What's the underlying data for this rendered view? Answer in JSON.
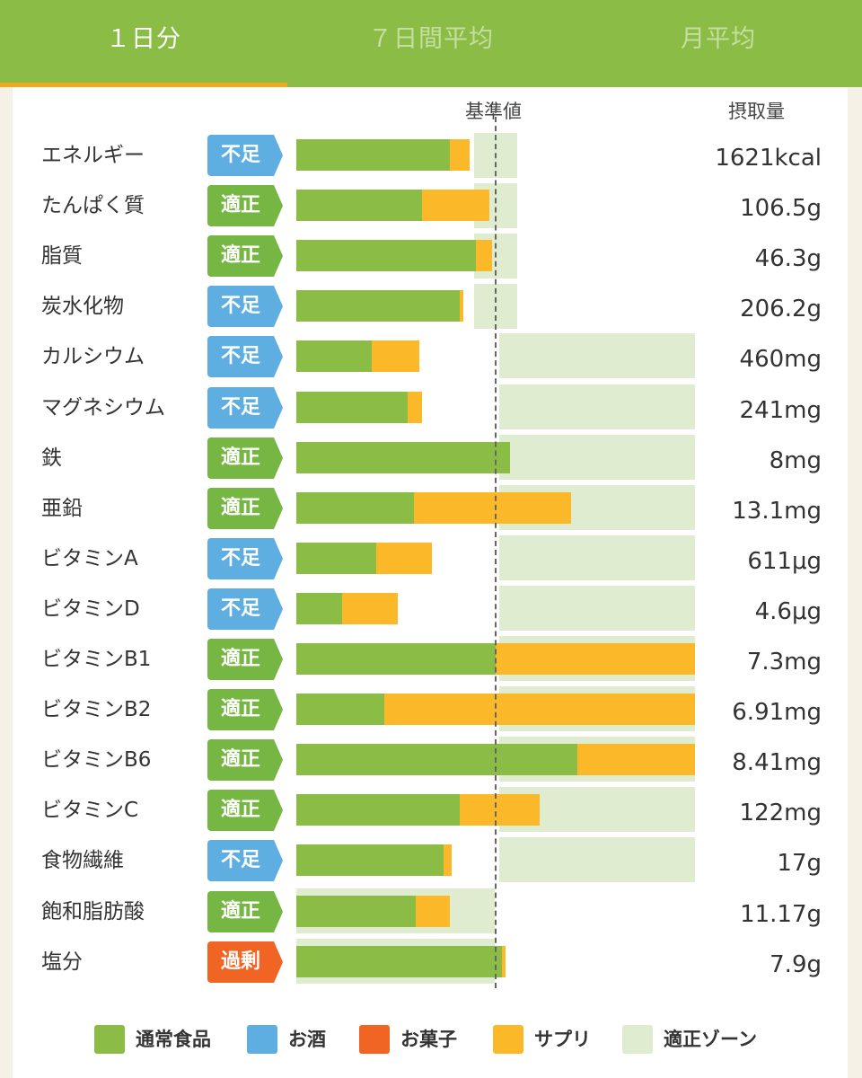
{
  "tabs": [
    {
      "label": "１日分",
      "active": true
    },
    {
      "label": "７日間平均",
      "active": false
    },
    {
      "label": "月平均",
      "active": false
    }
  ],
  "header": {
    "reference_label": "基準値",
    "intake_label": "摂取量"
  },
  "colors": {
    "food": "#8bbd46",
    "alcohol": "#5eaee1",
    "snack": "#f06424",
    "supplement": "#fbb92a",
    "zone": "#dfecd0",
    "status_short": "#5eaee1",
    "status_ok": "#76b743",
    "status_over": "#f06424"
  },
  "rows": [
    {
      "name": "エネルギー",
      "status": "不足",
      "status_type": "short",
      "value": "1621kcal",
      "food_pct": 0.77,
      "supplement_pct": 0.1,
      "zone": "narrow"
    },
    {
      "name": "たんぱく質",
      "status": "適正",
      "status_type": "ok",
      "value": "106.5g",
      "food_pct": 0.63,
      "supplement_pct": 0.34,
      "zone": "narrow"
    },
    {
      "name": "脂質",
      "status": "適正",
      "status_type": "ok",
      "value": "46.3g",
      "food_pct": 0.9,
      "supplement_pct": 0.08,
      "zone": "narrow"
    },
    {
      "name": "炭水化物",
      "status": "不足",
      "status_type": "short",
      "value": "206.2g",
      "food_pct": 0.82,
      "supplement_pct": 0.02,
      "zone": "narrow"
    },
    {
      "name": "カルシウム",
      "status": "不足",
      "status_type": "short",
      "value": "460mg",
      "food_pct": 0.38,
      "supplement_pct": 0.24,
      "zone": "upper"
    },
    {
      "name": "マグネシウム",
      "status": "不足",
      "status_type": "short",
      "value": "241mg",
      "food_pct": 0.56,
      "supplement_pct": 0.07,
      "zone": "upper"
    },
    {
      "name": "鉄",
      "status": "適正",
      "status_type": "ok",
      "value": "8mg",
      "food_pct": 1.07,
      "supplement_pct": 0.0,
      "zone": "upper"
    },
    {
      "name": "亜鉛",
      "status": "適正",
      "status_type": "ok",
      "value": "13.1mg",
      "food_pct": 0.59,
      "supplement_pct": 0.79,
      "zone": "upper"
    },
    {
      "name": "ビタミンA",
      "status": "不足",
      "status_type": "short",
      "value": "611μg",
      "food_pct": 0.4,
      "supplement_pct": 0.28,
      "zone": "upper"
    },
    {
      "name": "ビタミンD",
      "status": "不足",
      "status_type": "short",
      "value": "4.6μg",
      "food_pct": 0.23,
      "supplement_pct": 0.28,
      "zone": "upper"
    },
    {
      "name": "ビタミンB1",
      "status": "適正",
      "status_type": "ok",
      "value": "7.3mg",
      "food_pct": 1.0,
      "supplement_pct": 1.0,
      "zone": "upper"
    },
    {
      "name": "ビタミンB2",
      "status": "適正",
      "status_type": "ok",
      "value": "6.91mg",
      "food_pct": 0.44,
      "supplement_pct": 1.56,
      "zone": "upper"
    },
    {
      "name": "ビタミンB6",
      "status": "適正",
      "status_type": "ok",
      "value": "8.41mg",
      "food_pct": 1.41,
      "supplement_pct": 0.59,
      "zone": "upper"
    },
    {
      "name": "ビタミンC",
      "status": "適正",
      "status_type": "ok",
      "value": "122mg",
      "food_pct": 0.82,
      "supplement_pct": 0.4,
      "zone": "upper"
    },
    {
      "name": "食物繊維",
      "status": "不足",
      "status_type": "short",
      "value": "17g",
      "food_pct": 0.74,
      "supplement_pct": 0.04,
      "zone": "upper"
    },
    {
      "name": "飽和脂肪酸",
      "status": "適正",
      "status_type": "ok",
      "value": "11.17g",
      "food_pct": 0.6,
      "supplement_pct": 0.17,
      "zone": "lower"
    },
    {
      "name": "塩分",
      "status": "過剰",
      "status_type": "over",
      "value": "7.9g",
      "food_pct": 1.03,
      "supplement_pct": 0.02,
      "zone": "lower"
    }
  ],
  "legend": [
    {
      "label": "通常食品",
      "color": "#8bbd46"
    },
    {
      "label": "お酒",
      "color": "#5eaee1"
    },
    {
      "label": "お菓子",
      "color": "#f06424"
    },
    {
      "label": "サプリ",
      "color": "#fbb92a"
    },
    {
      "label": "適正ゾーン",
      "color": "#dfecd0"
    }
  ]
}
